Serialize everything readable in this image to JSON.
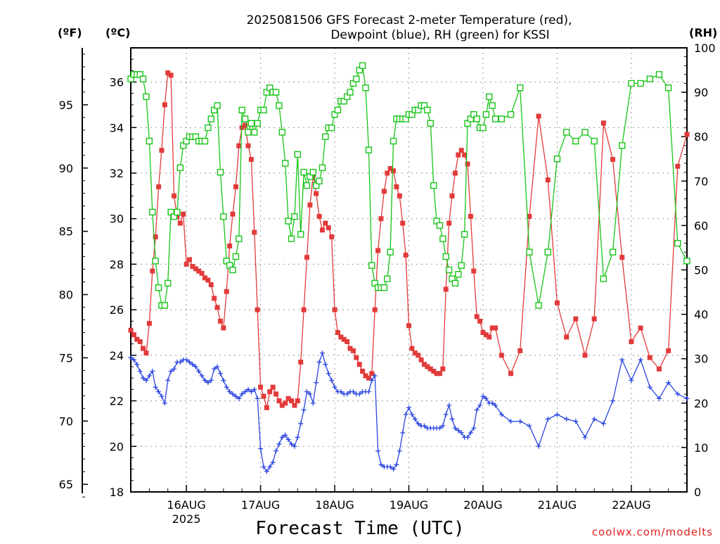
{
  "title_line1": "2025081506 GFS Forecast 2-meter Temperature (red),",
  "title_line2": "Dewpoint (blue), RH (green) for KSSI",
  "unit_f": "(ºF)",
  "unit_c": "(ºC)",
  "unit_rh": "(RH)",
  "xlabel": "Forecast Time (UTC)",
  "credit": "coolwx.com/modelts",
  "colors": {
    "temperature": "#e23a3a",
    "dewpoint": "#2a45e0",
    "rh": "#18c418",
    "grid": "#999999"
  },
  "chart_data": {
    "type": "line",
    "x_units": "hours since 2025-08-15 06 UTC",
    "xlim": [
      0,
      180
    ],
    "x_ticks": [
      {
        "x": 18,
        "label": "16AUG",
        "sublabel": "2025"
      },
      {
        "x": 42,
        "label": "17AUG",
        "sublabel": ""
      },
      {
        "x": 66,
        "label": "18AUG",
        "sublabel": ""
      },
      {
        "x": 90,
        "label": "19AUG",
        "sublabel": ""
      },
      {
        "x": 114,
        "label": "20AUG",
        "sublabel": ""
      },
      {
        "x": 138,
        "label": "21AUG",
        "sublabel": ""
      },
      {
        "x": 162,
        "label": "22AUG",
        "sublabel": ""
      }
    ],
    "left_axis_c": {
      "ylim": [
        18,
        37.5
      ],
      "ticks": [
        18,
        20,
        22,
        24,
        26,
        28,
        30,
        32,
        34,
        36
      ]
    },
    "left_axis_f": {
      "ticks": [
        65,
        70,
        75,
        80,
        85,
        90,
        95
      ]
    },
    "right_axis_rh": {
      "ylim": [
        0,
        100
      ],
      "ticks": [
        0,
        10,
        20,
        30,
        40,
        50,
        60,
        70,
        80,
        90,
        100
      ]
    },
    "grid": true,
    "series": [
      {
        "key": "temperature",
        "axis": "C",
        "marker": "filled-square",
        "x": [
          0,
          1,
          2,
          3,
          4,
          5,
          6,
          7,
          8,
          9,
          10,
          11,
          12,
          13,
          14,
          15,
          16,
          17,
          18,
          19,
          20,
          21,
          22,
          23,
          24,
          25,
          26,
          27,
          28,
          29,
          30,
          31,
          32,
          33,
          34,
          35,
          36,
          37,
          38,
          39,
          40,
          41,
          42,
          43,
          44,
          45,
          46,
          47,
          48,
          49,
          50,
          51,
          52,
          53,
          54,
          55,
          56,
          57,
          58,
          59,
          60,
          61,
          62,
          63,
          64,
          65,
          66,
          67,
          68,
          69,
          70,
          71,
          72,
          73,
          74,
          75,
          76,
          77,
          78,
          79,
          80,
          81,
          82,
          83,
          84,
          85,
          86,
          87,
          88,
          89,
          90,
          91,
          92,
          93,
          94,
          95,
          96,
          97,
          98,
          99,
          100,
          101,
          102,
          103,
          104,
          105,
          106,
          107,
          108,
          109,
          110,
          111,
          112,
          113,
          114,
          115,
          116,
          117,
          118,
          120,
          123,
          126,
          129,
          132,
          135,
          138,
          141,
          144,
          147,
          150,
          153,
          156,
          159,
          162,
          165,
          168,
          171,
          174,
          177,
          180
        ],
        "values": [
          25.1,
          24.9,
          24.7,
          24.6,
          24.3,
          24.1,
          25.4,
          27.7,
          29.2,
          31.4,
          33.0,
          35.0,
          36.4,
          36.3,
          31.0,
          30.1,
          29.8,
          30.2,
          28.0,
          28.2,
          27.9,
          27.8,
          27.7,
          27.6,
          27.4,
          27.3,
          27.1,
          26.5,
          26.1,
          25.5,
          25.2,
          26.8,
          28.8,
          30.2,
          31.4,
          33.2,
          34.0,
          34.1,
          33.2,
          32.6,
          29.4,
          26.0,
          22.6,
          22.2,
          21.7,
          22.4,
          22.6,
          22.3,
          22.0,
          21.8,
          21.9,
          22.1,
          22.0,
          21.8,
          22.0,
          23.7,
          26.0,
          28.3,
          30.6,
          31.9,
          31.1,
          30.1,
          29.5,
          29.8,
          29.6,
          29.2,
          26.0,
          25.0,
          24.8,
          24.7,
          24.6,
          24.3,
          24.2,
          23.9,
          23.6,
          23.3,
          23.1,
          23.0,
          23.2,
          26.0,
          28.6,
          30.0,
          31.2,
          32.0,
          32.2,
          32.1,
          31.4,
          31.0,
          29.8,
          28.4,
          25.3,
          24.3,
          24.1,
          24.0,
          23.8,
          23.6,
          23.5,
          23.4,
          23.3,
          23.2,
          23.2,
          23.4,
          26.9,
          29.8,
          31.0,
          32.0,
          32.8,
          33.0,
          32.8,
          32.4,
          30.1,
          27.7,
          25.7,
          25.5,
          25.0,
          24.9,
          24.8,
          25.2,
          25.2,
          24.0,
          23.2,
          24.2,
          30.1,
          34.5,
          31.7,
          26.3,
          24.8,
          25.6,
          24.0,
          25.6,
          34.2,
          32.6,
          28.3,
          24.6,
          25.2,
          23.9,
          23.4,
          24.2,
          32.3,
          33.7
        ]
      },
      {
        "key": "dewpoint",
        "axis": "C",
        "marker": "plus",
        "x": [
          0,
          1,
          2,
          3,
          4,
          5,
          6,
          7,
          8,
          9,
          10,
          11,
          12,
          13,
          14,
          15,
          16,
          17,
          18,
          19,
          20,
          21,
          22,
          23,
          24,
          25,
          26,
          27,
          28,
          29,
          30,
          31,
          32,
          33,
          34,
          35,
          36,
          37,
          38,
          39,
          40,
          41,
          42,
          43,
          44,
          45,
          46,
          47,
          48,
          49,
          50,
          51,
          52,
          53,
          54,
          55,
          56,
          57,
          58,
          59,
          60,
          61,
          62,
          63,
          64,
          65,
          66,
          67,
          68,
          69,
          70,
          71,
          72,
          73,
          74,
          75,
          76,
          77,
          78,
          79,
          80,
          81,
          82,
          83,
          84,
          85,
          86,
          87,
          88,
          89,
          90,
          91,
          92,
          93,
          94,
          95,
          96,
          97,
          98,
          99,
          100,
          101,
          102,
          103,
          104,
          105,
          106,
          107,
          108,
          109,
          110,
          111,
          112,
          113,
          114,
          115,
          116,
          117,
          118,
          120,
          123,
          126,
          129,
          132,
          135,
          138,
          141,
          144,
          147,
          150,
          153,
          156,
          159,
          162,
          165,
          168,
          171,
          174,
          177,
          180
        ],
        "values": [
          23.9,
          23.8,
          23.6,
          23.3,
          23.0,
          22.9,
          23.1,
          23.3,
          22.6,
          22.4,
          22.2,
          21.9,
          22.9,
          23.3,
          23.4,
          23.7,
          23.7,
          23.8,
          23.8,
          23.7,
          23.6,
          23.5,
          23.3,
          23.1,
          22.9,
          22.8,
          22.9,
          23.4,
          23.5,
          23.2,
          22.9,
          22.6,
          22.4,
          22.3,
          22.2,
          22.1,
          22.3,
          22.4,
          22.5,
          22.4,
          22.5,
          22.1,
          19.9,
          19.1,
          18.9,
          19.1,
          19.3,
          19.8,
          20.1,
          20.4,
          20.5,
          20.3,
          20.1,
          20.0,
          20.4,
          21.0,
          21.6,
          22.4,
          22.3,
          21.9,
          22.8,
          23.7,
          24.1,
          23.6,
          23.2,
          22.9,
          22.6,
          22.4,
          22.4,
          22.3,
          22.3,
          22.4,
          22.4,
          22.3,
          22.3,
          22.4,
          22.4,
          22.4,
          22.9,
          23.1,
          19.8,
          19.2,
          19.1,
          19.1,
          19.1,
          19.0,
          19.2,
          19.8,
          20.6,
          21.4,
          21.7,
          21.4,
          21.2,
          21.0,
          20.9,
          20.9,
          20.8,
          20.8,
          20.8,
          20.8,
          20.8,
          20.9,
          21.4,
          21.8,
          21.2,
          20.8,
          20.7,
          20.6,
          20.4,
          20.4,
          20.6,
          20.8,
          21.6,
          21.8,
          22.2,
          22.1,
          21.9,
          21.9,
          21.8,
          21.4,
          21.1,
          21.1,
          20.9,
          20.0,
          21.2,
          21.4,
          21.2,
          21.1,
          20.4,
          21.2,
          21.0,
          22.0,
          23.8,
          22.9,
          23.8,
          22.6,
          22.1,
          22.8,
          22.3,
          22.1
        ]
      },
      {
        "key": "rh",
        "axis": "RH",
        "marker": "open-square",
        "x": [
          0,
          1,
          2,
          3,
          4,
          5,
          6,
          7,
          8,
          9,
          10,
          11,
          12,
          13,
          14,
          15,
          16,
          17,
          18,
          19,
          20,
          21,
          22,
          23,
          24,
          25,
          26,
          27,
          28,
          29,
          30,
          31,
          32,
          33,
          34,
          35,
          36,
          37,
          38,
          39,
          40,
          41,
          42,
          43,
          44,
          45,
          46,
          47,
          48,
          49,
          50,
          51,
          52,
          53,
          54,
          55,
          56,
          57,
          58,
          59,
          60,
          61,
          62,
          63,
          64,
          65,
          66,
          67,
          68,
          69,
          70,
          71,
          72,
          73,
          74,
          75,
          76,
          77,
          78,
          79,
          80,
          81,
          82,
          83,
          84,
          85,
          86,
          87,
          88,
          89,
          90,
          91,
          92,
          93,
          94,
          95,
          96,
          97,
          98,
          99,
          100,
          101,
          102,
          103,
          104,
          105,
          106,
          107,
          108,
          109,
          110,
          111,
          112,
          113,
          114,
          115,
          116,
          117,
          118,
          120,
          123,
          126,
          129,
          132,
          135,
          138,
          141,
          144,
          147,
          150,
          153,
          156,
          159,
          162,
          165,
          168,
          171,
          174,
          177,
          180
        ],
        "values": [
          93,
          94,
          94,
          94,
          93,
          89,
          79,
          63,
          52,
          46,
          42,
          42,
          47,
          63,
          62,
          63,
          73,
          78,
          79,
          80,
          80,
          80,
          79,
          79,
          79,
          82,
          84,
          86,
          87,
          72,
          62,
          52,
          51,
          50,
          53,
          57,
          86,
          84,
          81,
          83,
          81,
          83,
          86,
          86,
          90,
          91,
          90,
          90,
          87,
          81,
          74,
          61,
          57,
          62,
          76,
          58,
          72,
          69,
          71,
          72,
          69,
          70,
          73,
          80,
          82,
          82,
          85,
          86,
          88,
          88,
          89,
          90,
          92,
          93,
          95,
          96,
          91,
          77,
          51,
          47,
          46,
          46,
          46,
          48,
          54,
          79,
          84,
          84,
          84,
          84,
          85,
          85,
          86,
          86,
          87,
          87,
          86,
          83,
          69,
          61,
          60,
          57,
          53,
          50,
          48,
          47,
          49,
          51,
          58,
          83,
          84,
          85,
          84,
          82,
          82,
          85,
          89,
          87,
          84,
          84,
          85,
          91,
          54,
          42,
          54,
          75,
          81,
          79,
          81,
          79,
          48,
          54,
          78,
          92,
          92,
          93,
          94,
          91,
          56,
          52
        ]
      }
    ]
  }
}
